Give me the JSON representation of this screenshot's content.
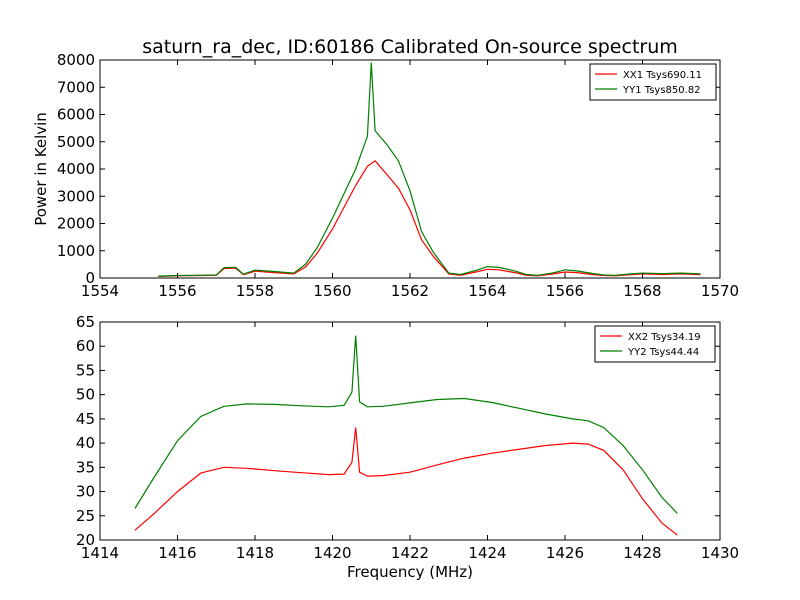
{
  "chart_data": [
    {
      "type": "line",
      "title": "saturn_ra_dec, ID:60186 Calibrated On-source spectrum",
      "xlabel": "",
      "ylabel": "Power in Kelvin",
      "xlim": [
        1554,
        1570
      ],
      "ylim": [
        0,
        8000
      ],
      "xticks": [
        1554,
        1556,
        1558,
        1560,
        1562,
        1564,
        1566,
        1568,
        1570
      ],
      "yticks": [
        0,
        1000,
        2000,
        3000,
        4000,
        5000,
        6000,
        7000,
        8000
      ],
      "grid": false,
      "legend_position": "top-right",
      "colors": {
        "XX1 Tsys690.11": "#ff0000",
        "YY1 Tsys850.82": "#008000"
      },
      "series": [
        {
          "name": "XX1 Tsys690.11",
          "x": [
            1555.5,
            1556.0,
            1556.5,
            1557.0,
            1557.2,
            1557.5,
            1557.7,
            1558.0,
            1558.5,
            1559.0,
            1559.3,
            1559.6,
            1560.0,
            1560.3,
            1560.6,
            1560.9,
            1561.1,
            1561.4,
            1561.7,
            1562.0,
            1562.3,
            1562.6,
            1563.0,
            1563.3,
            1563.7,
            1564.0,
            1564.3,
            1564.7,
            1565.0,
            1565.3,
            1565.7,
            1566.0,
            1566.3,
            1566.7,
            1567.0,
            1567.3,
            1567.7,
            1568.0,
            1568.5,
            1569.0,
            1569.5
          ],
          "y": [
            60,
            80,
            90,
            100,
            350,
            360,
            120,
            250,
            200,
            150,
            400,
            900,
            1800,
            2600,
            3400,
            4100,
            4300,
            3800,
            3300,
            2500,
            1400,
            800,
            150,
            100,
            220,
            320,
            300,
            200,
            100,
            80,
            150,
            220,
            200,
            130,
            90,
            80,
            120,
            150,
            130,
            150,
            120
          ]
        },
        {
          "name": "YY1 Tsys850.82",
          "x": [
            1555.5,
            1556.0,
            1556.5,
            1557.0,
            1557.2,
            1557.5,
            1557.7,
            1558.0,
            1558.5,
            1559.0,
            1559.3,
            1559.6,
            1560.0,
            1560.3,
            1560.6,
            1560.9,
            1561.0,
            1561.1,
            1561.4,
            1561.7,
            1562.0,
            1562.3,
            1562.6,
            1563.0,
            1563.3,
            1563.7,
            1564.0,
            1564.3,
            1564.7,
            1565.0,
            1565.3,
            1565.7,
            1566.0,
            1566.3,
            1566.7,
            1567.0,
            1567.3,
            1567.7,
            1568.0,
            1568.5,
            1569.0,
            1569.5
          ],
          "y": [
            70,
            90,
            100,
            110,
            380,
            390,
            140,
            290,
            240,
            180,
            500,
            1100,
            2200,
            3100,
            4000,
            5200,
            7900,
            5400,
            4900,
            4300,
            3200,
            1700,
            950,
            180,
            130,
            280,
            420,
            390,
            260,
            130,
            100,
            190,
            300,
            260,
            170,
            110,
            100,
            150,
            180,
            160,
            180,
            150
          ]
        }
      ]
    },
    {
      "type": "line",
      "title": "",
      "xlabel": "Frequency (MHz)",
      "ylabel": "",
      "xlim": [
        1414,
        1430
      ],
      "ylim": [
        20,
        65
      ],
      "xticks": [
        1414,
        1416,
        1418,
        1420,
        1422,
        1424,
        1426,
        1428,
        1430
      ],
      "yticks": [
        20,
        25,
        30,
        35,
        40,
        45,
        50,
        55,
        60,
        65
      ],
      "grid": false,
      "legend_position": "top-right",
      "colors": {
        "XX2 Tsys34.19": "#ff0000",
        "YY2 Tsys44.44": "#008000"
      },
      "series": [
        {
          "name": "XX2 Tsys34.19",
          "x": [
            1414.9,
            1415.4,
            1416.0,
            1416.6,
            1417.2,
            1417.8,
            1418.5,
            1419.2,
            1419.9,
            1420.3,
            1420.5,
            1420.6,
            1420.7,
            1420.9,
            1421.3,
            1422.0,
            1422.7,
            1423.4,
            1424.1,
            1424.8,
            1425.5,
            1426.2,
            1426.6,
            1427.0,
            1427.5,
            1428.0,
            1428.5,
            1428.9
          ],
          "y": [
            22.0,
            25.5,
            30.0,
            33.8,
            35.0,
            34.8,
            34.3,
            33.9,
            33.5,
            33.6,
            36.0,
            43.2,
            34.0,
            33.2,
            33.3,
            34.0,
            35.5,
            36.9,
            37.9,
            38.7,
            39.5,
            40.0,
            39.8,
            38.5,
            34.5,
            28.5,
            23.5,
            21.0
          ]
        },
        {
          "name": "YY2 Tsys44.44",
          "x": [
            1414.9,
            1415.4,
            1416.0,
            1416.6,
            1417.2,
            1417.8,
            1418.5,
            1419.2,
            1419.9,
            1420.3,
            1420.5,
            1420.6,
            1420.7,
            1420.9,
            1421.3,
            1422.0,
            1422.7,
            1423.4,
            1424.1,
            1424.8,
            1425.5,
            1426.2,
            1426.6,
            1427.0,
            1427.5,
            1428.0,
            1428.5,
            1428.9
          ],
          "y": [
            26.5,
            33.0,
            40.5,
            45.5,
            47.6,
            48.1,
            48.0,
            47.7,
            47.5,
            47.8,
            50.5,
            62.2,
            48.5,
            47.5,
            47.6,
            48.3,
            49.0,
            49.2,
            48.4,
            47.2,
            46.0,
            45.0,
            44.6,
            43.2,
            39.5,
            34.5,
            28.8,
            25.5
          ]
        }
      ]
    }
  ]
}
